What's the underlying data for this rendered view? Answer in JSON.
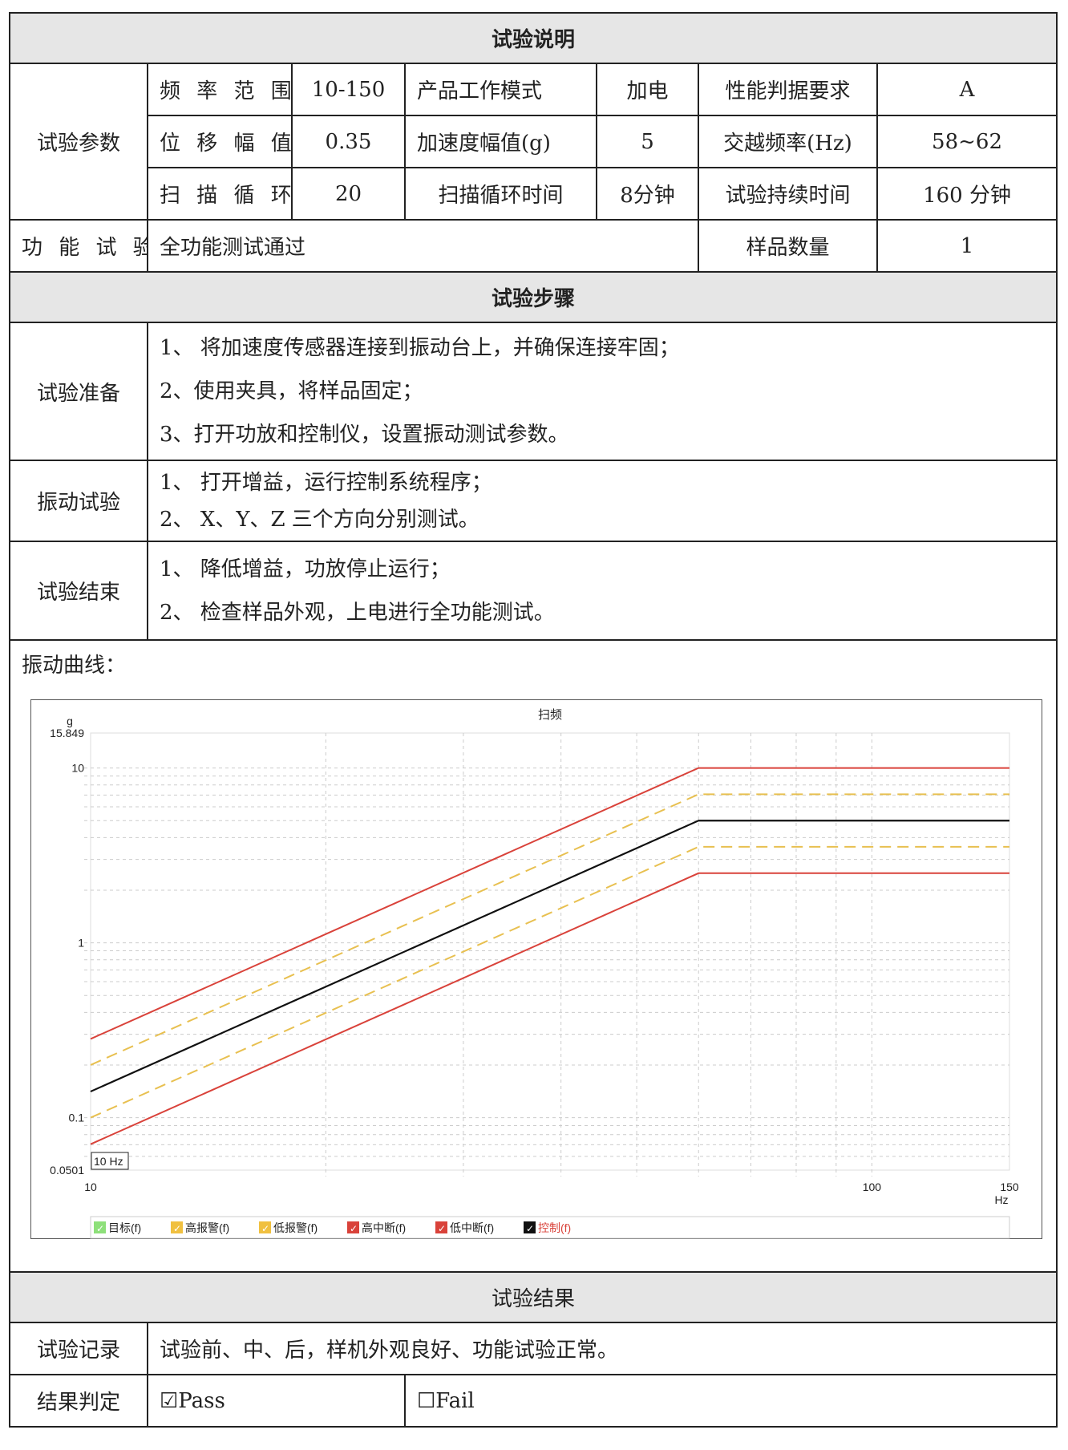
{
  "sections": {
    "description": "试验说明",
    "steps": "试验步骤",
    "result": "试验结果"
  },
  "params": {
    "label": "试验参数",
    "rows": [
      [
        "频 率 范 围",
        "10-150",
        "产品工作模式",
        "加电",
        "性能判据要求",
        "A"
      ],
      [
        "位 移 幅 值",
        "0.35",
        "加速度幅值(g)",
        "5",
        "交越频率(Hz)",
        "58~62"
      ],
      [
        "扫 描 循 环",
        "20",
        "扫描循环时间",
        "8分钟",
        "试验持续时间",
        "160 分钟"
      ]
    ]
  },
  "function_test": {
    "label": "功 能 试 验",
    "value": "全功能测试通过",
    "sample_label": "样品数量",
    "sample_value": "1"
  },
  "procedure": [
    {
      "label": "试验准备",
      "items": [
        "1、 将加速度传感器连接到振动台上，并确保连接牢固；",
        "2、使用夹具，将样品固定；",
        "3、打开功放和控制仪，设置振动测试参数。"
      ]
    },
    {
      "label": "振动试验",
      "items": [
        "1、 打开增益，运行控制系统程序；",
        "2、 X、Y、Z 三个方向分别测试。"
      ]
    },
    {
      "label": "试验结束",
      "items": [
        "1、 降低增益，功放停止运行；",
        "2、 检查样品外观，上电进行全功能测试。"
      ]
    }
  ],
  "curve_label": "振动曲线：",
  "chart_data": {
    "type": "line",
    "title": "扫频",
    "xlabel": "Hz",
    "ylabel": "g",
    "xscale": "log",
    "yscale": "log",
    "xlim": [
      10,
      150
    ],
    "ylim": [
      0.0501,
      15.849
    ],
    "x_ticks": [
      "10",
      "100",
      "150"
    ],
    "y_ticks": [
      "15.849",
      "10",
      "1",
      "0.1",
      "0.0501"
    ],
    "grid": true,
    "cursor_label": "10 Hz",
    "legend_position": "bottom",
    "series": [
      {
        "name": "目标(f)",
        "color": "#111111",
        "style": "solid",
        "points": [
          [
            10,
            0.141
          ],
          [
            60,
            5.0
          ],
          [
            150,
            5.0
          ]
        ]
      },
      {
        "name": "高报警(f)",
        "color": "#e8c050",
        "style": "dashed",
        "points": [
          [
            10,
            0.2
          ],
          [
            60,
            7.07
          ],
          [
            150,
            7.07
          ]
        ]
      },
      {
        "name": "低报警(f)",
        "color": "#e8c050",
        "style": "dashed",
        "points": [
          [
            10,
            0.1
          ],
          [
            60,
            3.54
          ],
          [
            150,
            3.54
          ]
        ]
      },
      {
        "name": "高中断(f)",
        "color": "#d9423a",
        "style": "solid",
        "points": [
          [
            10,
            0.282
          ],
          [
            60,
            10.0
          ],
          [
            150,
            10.0
          ]
        ]
      },
      {
        "name": "低中断(f)",
        "color": "#d9423a",
        "style": "solid",
        "points": [
          [
            10,
            0.0705
          ],
          [
            60,
            2.5
          ],
          [
            150,
            2.5
          ]
        ]
      },
      {
        "name": "控制(f)",
        "color": "#111111",
        "style": "solid",
        "points": [
          [
            10,
            0.141
          ],
          [
            60,
            5.0
          ],
          [
            150,
            5.0
          ]
        ]
      }
    ],
    "legend_box_colors": [
      "#8ee07a",
      "#f0c040",
      "#f0c040",
      "#d9423a",
      "#d9423a",
      "#111111"
    ],
    "legend_text_colors": [
      "#222222",
      "#222222",
      "#222222",
      "#222222",
      "#222222",
      "#d9423a"
    ]
  },
  "record": {
    "label": "试验记录",
    "value": "试验前、中、后，样机外观良好、功能试验正常。"
  },
  "verdict": {
    "label": "结果判定",
    "pass": "☑Pass",
    "fail": "☐Fail"
  }
}
